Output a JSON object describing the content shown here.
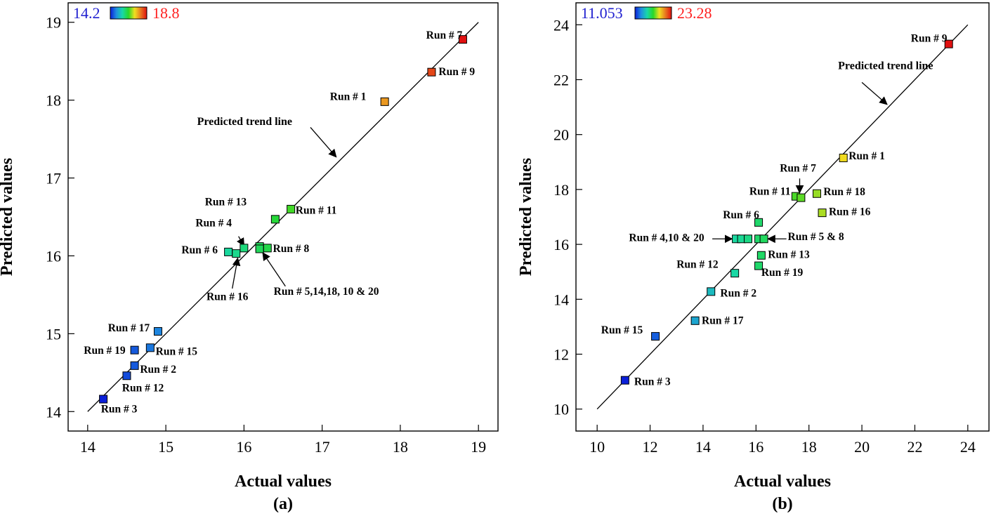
{
  "colors": {
    "low": "#1f1fd0",
    "high": "#ff1f1f",
    "gradient": [
      "#0a1fd8",
      "#1f8fe0",
      "#18d8a8",
      "#28d828",
      "#f0e020",
      "#e87820",
      "#e01010"
    ]
  },
  "chart_data": [
    {
      "type": "scatter",
      "caption": "(a)",
      "xlabel": "Actual values",
      "ylabel": "Predicted values",
      "xlim": [
        13.75,
        19.25
      ],
      "ylim": [
        13.75,
        19.25
      ],
      "xticks": [
        14,
        15,
        16,
        17,
        18,
        19
      ],
      "yticks": [
        14,
        15,
        16,
        17,
        18,
        19
      ],
      "xtick_labels": [
        "14",
        "15",
        "16",
        "17",
        "18",
        "19"
      ],
      "ytick_labels": [
        "14",
        "15",
        "16",
        "17",
        "18",
        "19"
      ],
      "color_range": {
        "min_label": "14.2",
        "max_label": "18.8",
        "min": 14.2,
        "max": 18.8
      },
      "trend_line": {
        "label": "Predicted trend line",
        "from": [
          14.0,
          14.0
        ],
        "to": [
          19.0,
          19.0
        ]
      },
      "points": [
        {
          "x": 18.8,
          "y": 18.78
        },
        {
          "x": 18.4,
          "y": 18.36
        },
        {
          "x": 17.8,
          "y": 17.98
        },
        {
          "x": 16.6,
          "y": 16.6
        },
        {
          "x": 16.4,
          "y": 16.47
        },
        {
          "x": 16.0,
          "y": 16.1
        },
        {
          "x": 15.8,
          "y": 16.05
        },
        {
          "x": 15.9,
          "y": 16.03
        },
        {
          "x": 16.2,
          "y": 16.12
        },
        {
          "x": 16.3,
          "y": 16.1
        },
        {
          "x": 16.2,
          "y": 16.09
        },
        {
          "x": 14.9,
          "y": 15.03
        },
        {
          "x": 14.8,
          "y": 14.82
        },
        {
          "x": 14.6,
          "y": 14.79
        },
        {
          "x": 14.6,
          "y": 14.59
        },
        {
          "x": 14.5,
          "y": 14.46
        },
        {
          "x": 14.2,
          "y": 14.16
        }
      ],
      "annotations": [
        {
          "text": "Run # 7",
          "x": 18.33,
          "y": 18.79
        },
        {
          "text": "Run # 9",
          "x": 18.49,
          "y": 18.32
        },
        {
          "text": "Run # 1",
          "x": 17.1,
          "y": 18.0
        },
        {
          "text": "Run # 11",
          "x": 16.66,
          "y": 16.54
        },
        {
          "text": "Run # 13",
          "x": 15.5,
          "y": 16.65
        },
        {
          "text": "Run # 4",
          "x": 15.38,
          "y": 16.38
        },
        {
          "text": "Run # 6",
          "x": 15.2,
          "y": 16.03
        },
        {
          "text": "Run # 8",
          "x": 16.37,
          "y": 16.05
        },
        {
          "text": "Run # 16",
          "x": 15.52,
          "y": 15.43
        },
        {
          "text": "Run # 5,14,18, 10 & 20",
          "x": 16.38,
          "y": 15.5
        },
        {
          "text": "Run # 17",
          "x": 14.26,
          "y": 15.03
        },
        {
          "text": "Run # 19",
          "x": 13.95,
          "y": 14.74
        },
        {
          "text": "Run # 15",
          "x": 14.87,
          "y": 14.73
        },
        {
          "text": "Run # 2",
          "x": 14.67,
          "y": 14.5
        },
        {
          "text": "Run # 12",
          "x": 14.44,
          "y": 14.26
        },
        {
          "text": "Run # 3",
          "x": 14.17,
          "y": 13.99
        }
      ],
      "arrows": [
        {
          "from": [
            15.93,
            16.25
          ],
          "to": [
            16.0,
            16.13
          ]
        },
        {
          "from": [
            15.85,
            15.58
          ],
          "to": [
            15.92,
            15.97
          ]
        },
        {
          "from": [
            16.53,
            15.61
          ],
          "to": [
            16.24,
            16.04
          ]
        },
        {
          "from": [
            16.85,
            17.65
          ],
          "to": [
            17.18,
            17.27
          ]
        }
      ]
    },
    {
      "type": "scatter",
      "caption": "(b)",
      "xlabel": "Actual values",
      "ylabel": "Predicted values",
      "xlim": [
        9.2,
        24.8
      ],
      "ylim": [
        9.2,
        24.8
      ],
      "xticks": [
        10,
        12,
        14,
        16,
        18,
        20,
        22,
        24
      ],
      "yticks": [
        10,
        12,
        14,
        16,
        18,
        20,
        22,
        24
      ],
      "xtick_labels": [
        "10",
        "12",
        "14",
        "16",
        "18",
        "20",
        "22",
        "24"
      ],
      "ytick_labels": [
        "10",
        "12",
        "14",
        "16",
        "18",
        "20",
        "22",
        "24"
      ],
      "color_range": {
        "min_label": "11.053",
        "max_label": "23.28",
        "min": 11.053,
        "max": 23.28
      },
      "trend_line": {
        "label": "Predicted trend line",
        "from": [
          10.0,
          10.0
        ],
        "to": [
          24.0,
          24.0
        ]
      },
      "points": [
        {
          "x": 23.28,
          "y": 23.3
        },
        {
          "x": 19.3,
          "y": 19.15
        },
        {
          "x": 17.5,
          "y": 17.75
        },
        {
          "x": 17.7,
          "y": 17.7
        },
        {
          "x": 18.3,
          "y": 17.85
        },
        {
          "x": 18.5,
          "y": 17.15
        },
        {
          "x": 16.1,
          "y": 16.8
        },
        {
          "x": 15.25,
          "y": 16.2
        },
        {
          "x": 15.45,
          "y": 16.2
        },
        {
          "x": 15.7,
          "y": 16.2
        },
        {
          "x": 16.1,
          "y": 16.2
        },
        {
          "x": 16.3,
          "y": 16.2
        },
        {
          "x": 16.2,
          "y": 15.6
        },
        {
          "x": 16.1,
          "y": 15.22
        },
        {
          "x": 15.2,
          "y": 14.95
        },
        {
          "x": 14.3,
          "y": 14.28
        },
        {
          "x": 13.7,
          "y": 13.22
        },
        {
          "x": 12.2,
          "y": 12.65
        },
        {
          "x": 11.053,
          "y": 11.05
        }
      ],
      "annotations": [
        {
          "text": "Run # 9",
          "x": 21.85,
          "y": 23.38
        },
        {
          "text": "Predicted trend line",
          "x": 19.1,
          "y": 22.38
        },
        {
          "text": "Run # 1",
          "x": 19.5,
          "y": 19.1
        },
        {
          "text": "Run # 7",
          "x": 16.9,
          "y": 18.65
        },
        {
          "text": "Run # 11",
          "x": 15.75,
          "y": 17.8
        },
        {
          "text": "Run # 18",
          "x": 18.55,
          "y": 17.79
        },
        {
          "text": "Run # 6",
          "x": 14.75,
          "y": 16.95
        },
        {
          "text": "Run # 16",
          "x": 18.75,
          "y": 17.07
        },
        {
          "text": "Run # 4,10 & 20",
          "x": 11.2,
          "y": 16.12
        },
        {
          "text": "Run # 5 & 8",
          "x": 17.2,
          "y": 16.15
        },
        {
          "text": "Run # 13",
          "x": 16.45,
          "y": 15.5
        },
        {
          "text": "Run # 12",
          "x": 13.0,
          "y": 15.15
        },
        {
          "text": "Run # 19",
          "x": 16.2,
          "y": 14.85
        },
        {
          "text": "Run # 2",
          "x": 14.65,
          "y": 14.1
        },
        {
          "text": "Run # 17",
          "x": 13.95,
          "y": 13.1
        },
        {
          "text": "Run # 15",
          "x": 10.15,
          "y": 12.75
        },
        {
          "text": "Run # 3",
          "x": 11.4,
          "y": 10.88
        }
      ],
      "arrows": [
        {
          "from": [
            17.65,
            18.4
          ],
          "to": [
            17.65,
            17.88
          ]
        },
        {
          "from": [
            14.35,
            16.2
          ],
          "to": [
            15.1,
            16.2
          ]
        },
        {
          "from": [
            17.15,
            16.2
          ],
          "to": [
            16.45,
            16.2
          ]
        },
        {
          "from": [
            20.0,
            21.9
          ],
          "to": [
            20.95,
            21.1
          ]
        }
      ]
    }
  ]
}
